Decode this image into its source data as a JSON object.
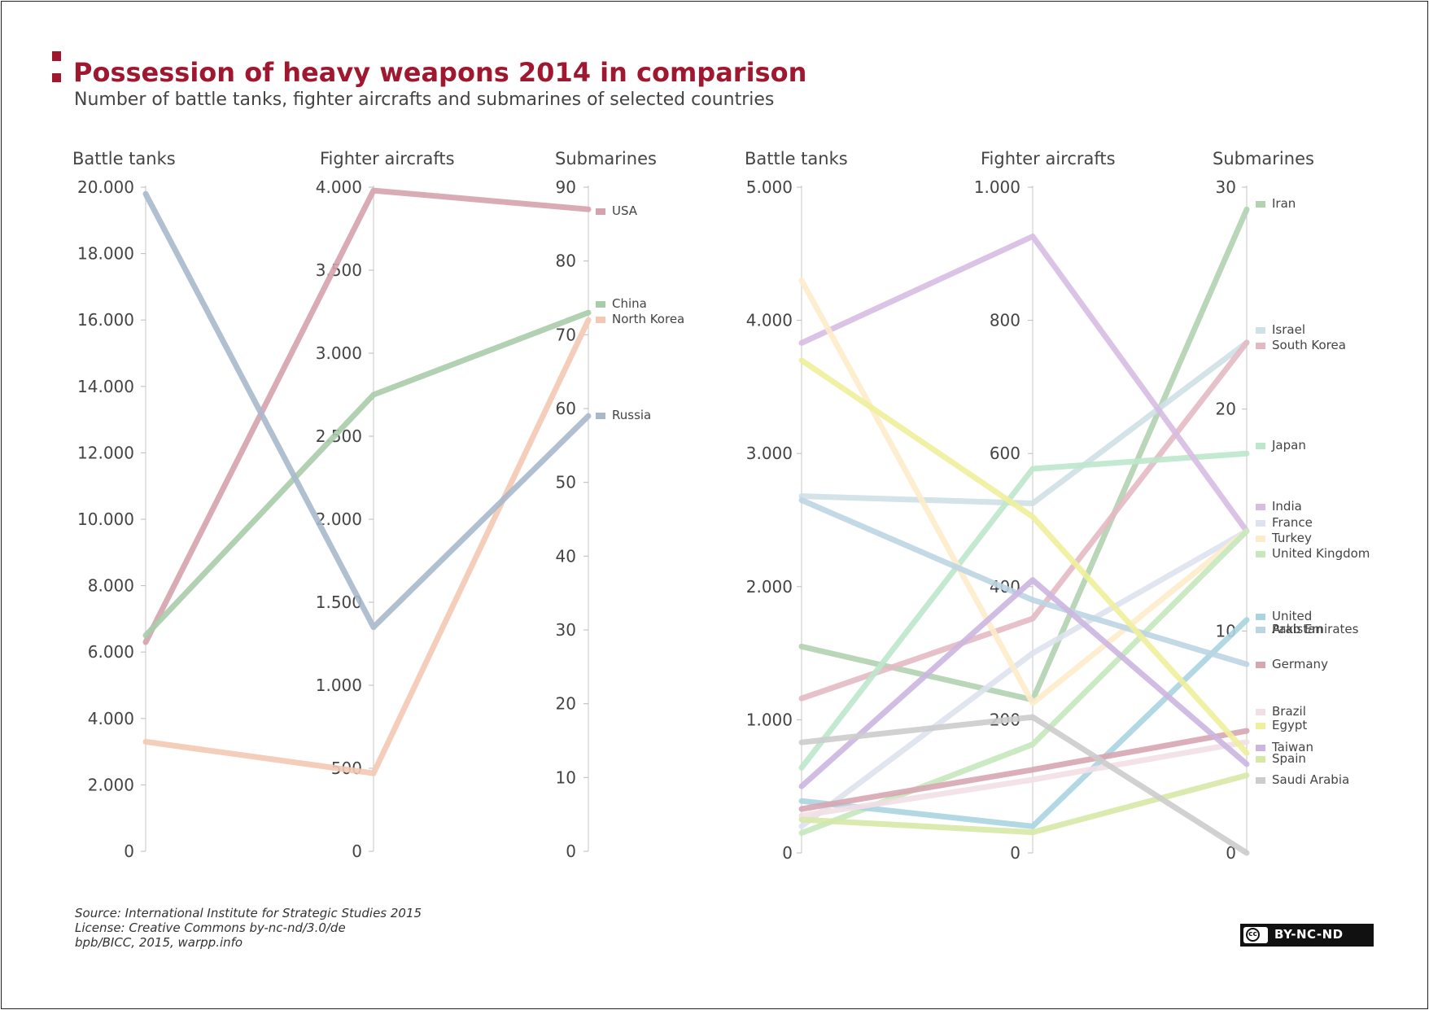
{
  "header": {
    "title": "Possession of heavy weapons 2014 in comparison",
    "subtitle": "Number of battle tanks, fighter aircrafts and submarines of selected countries"
  },
  "footer": {
    "source": "Source: International Institute for Strategic Studies 2015",
    "license": "License: Creative Commons by-nc-nd/3.0/de",
    "credit": "bpb/BICC, 2015, warpp.info",
    "badge": "BY-NC-ND",
    "badge_icon": "cc-icon",
    "badge_icon_text": "cc"
  },
  "chart_data": [
    {
      "type": "line",
      "axes": [
        {
          "name": "Battle tanks",
          "range": [
            0,
            20000
          ],
          "ticks": [
            0,
            2000,
            4000,
            6000,
            8000,
            10000,
            12000,
            14000,
            16000,
            18000,
            20000
          ],
          "tick_labels": [
            "0",
            "2.000",
            "4.000",
            "6.000",
            "8.000",
            "10.000",
            "12.000",
            "14.000",
            "16.000",
            "18.000",
            "20.000"
          ]
        },
        {
          "name": "Fighter aircrafts",
          "range": [
            0,
            4000
          ],
          "ticks": [
            0,
            500,
            1000,
            1500,
            2000,
            2500,
            3000,
            3500,
            4000
          ],
          "tick_labels": [
            "0",
            "500",
            "1.000",
            "1.500",
            "2.000",
            "2.500",
            "3.000",
            "3.500",
            "4.000"
          ]
        },
        {
          "name": "Submarines",
          "range": [
            0,
            90
          ],
          "ticks": [
            0,
            10,
            20,
            30,
            40,
            50,
            60,
            70,
            80,
            90
          ],
          "tick_labels": [
            "0",
            "10",
            "20",
            "30",
            "40",
            "50",
            "60",
            "70",
            "80",
            "90"
          ]
        }
      ],
      "series": [
        {
          "name": "USA",
          "color": "#d5a3ad",
          "values": [
            6300,
            3980,
            87
          ]
        },
        {
          "name": "China",
          "color": "#a8ccaa",
          "values": [
            6500,
            2750,
            73
          ]
        },
        {
          "name": "North Korea",
          "color": "#f3c9b3",
          "values": [
            3300,
            470,
            72
          ]
        },
        {
          "name": "Russia",
          "color": "#a9b9cc",
          "values": [
            19800,
            1350,
            59
          ]
        }
      ]
    },
    {
      "type": "line",
      "axes": [
        {
          "name": "Battle tanks",
          "range": [
            0,
            5000
          ],
          "ticks": [
            0,
            1000,
            2000,
            3000,
            4000,
            5000
          ],
          "tick_labels": [
            "0",
            "1.000",
            "2.000",
            "3.000",
            "4.000",
            "5.000"
          ]
        },
        {
          "name": "Fighter aircrafts",
          "range": [
            0,
            1000
          ],
          "ticks": [
            0,
            200,
            400,
            600,
            800,
            1000
          ],
          "tick_labels": [
            "0",
            "200",
            "400",
            "600",
            "800",
            "1.000"
          ]
        },
        {
          "name": "Submarines",
          "range": [
            0,
            30
          ],
          "ticks": [
            0,
            10,
            20,
            30
          ],
          "tick_labels": [
            "0",
            "10",
            "20",
            "30"
          ]
        }
      ],
      "series": [
        {
          "name": "Iran",
          "color": "#b1d3b0",
          "values": [
            1550,
            230,
            29
          ]
        },
        {
          "name": "Israel",
          "color": "#cfe0e6",
          "values": [
            2680,
            525,
            23
          ]
        },
        {
          "name": "South Korea",
          "color": "#e3bac4",
          "values": [
            1160,
            352,
            23
          ]
        },
        {
          "name": "Japan",
          "color": "#bde7cc",
          "values": [
            640,
            577,
            18
          ]
        },
        {
          "name": "India",
          "color": "#d7bde2",
          "values": [
            3830,
            926,
            14.5
          ]
        },
        {
          "name": "France",
          "color": "#dde2ee",
          "values": [
            200,
            300,
            14.5
          ]
        },
        {
          "name": "Turkey",
          "color": "#fdeccb",
          "values": [
            4300,
            225,
            14.5
          ]
        },
        {
          "name": "United Kingdom",
          "color": "#c5e8bd",
          "values": [
            150,
            163,
            14.5
          ]
        },
        {
          "name": "United Arab Emirates",
          "color": "#a9d4e0",
          "values": [
            390,
            40,
            10.5
          ]
        },
        {
          "name": "Pakistan",
          "color": "#bcd5e2",
          "values": [
            2650,
            380,
            8.5
          ]
        },
        {
          "name": "Germany",
          "color": "#d7a6b1",
          "values": [
            330,
            125,
            5.5
          ]
        },
        {
          "name": "Brazil",
          "color": "#f2dfe5",
          "values": [
            280,
            110,
            5
          ]
        },
        {
          "name": "Egypt",
          "color": "#eff09b",
          "values": [
            3700,
            505,
            4.5
          ]
        },
        {
          "name": "Taiwan",
          "color": "#ccb6e0",
          "values": [
            500,
            410,
            4
          ]
        },
        {
          "name": "Spain",
          "color": "#d7e8a6",
          "values": [
            250,
            31,
            3.5
          ]
        },
        {
          "name": "Saudi Arabia",
          "color": "#cccccc",
          "values": [
            830,
            204,
            0
          ]
        }
      ]
    }
  ]
}
